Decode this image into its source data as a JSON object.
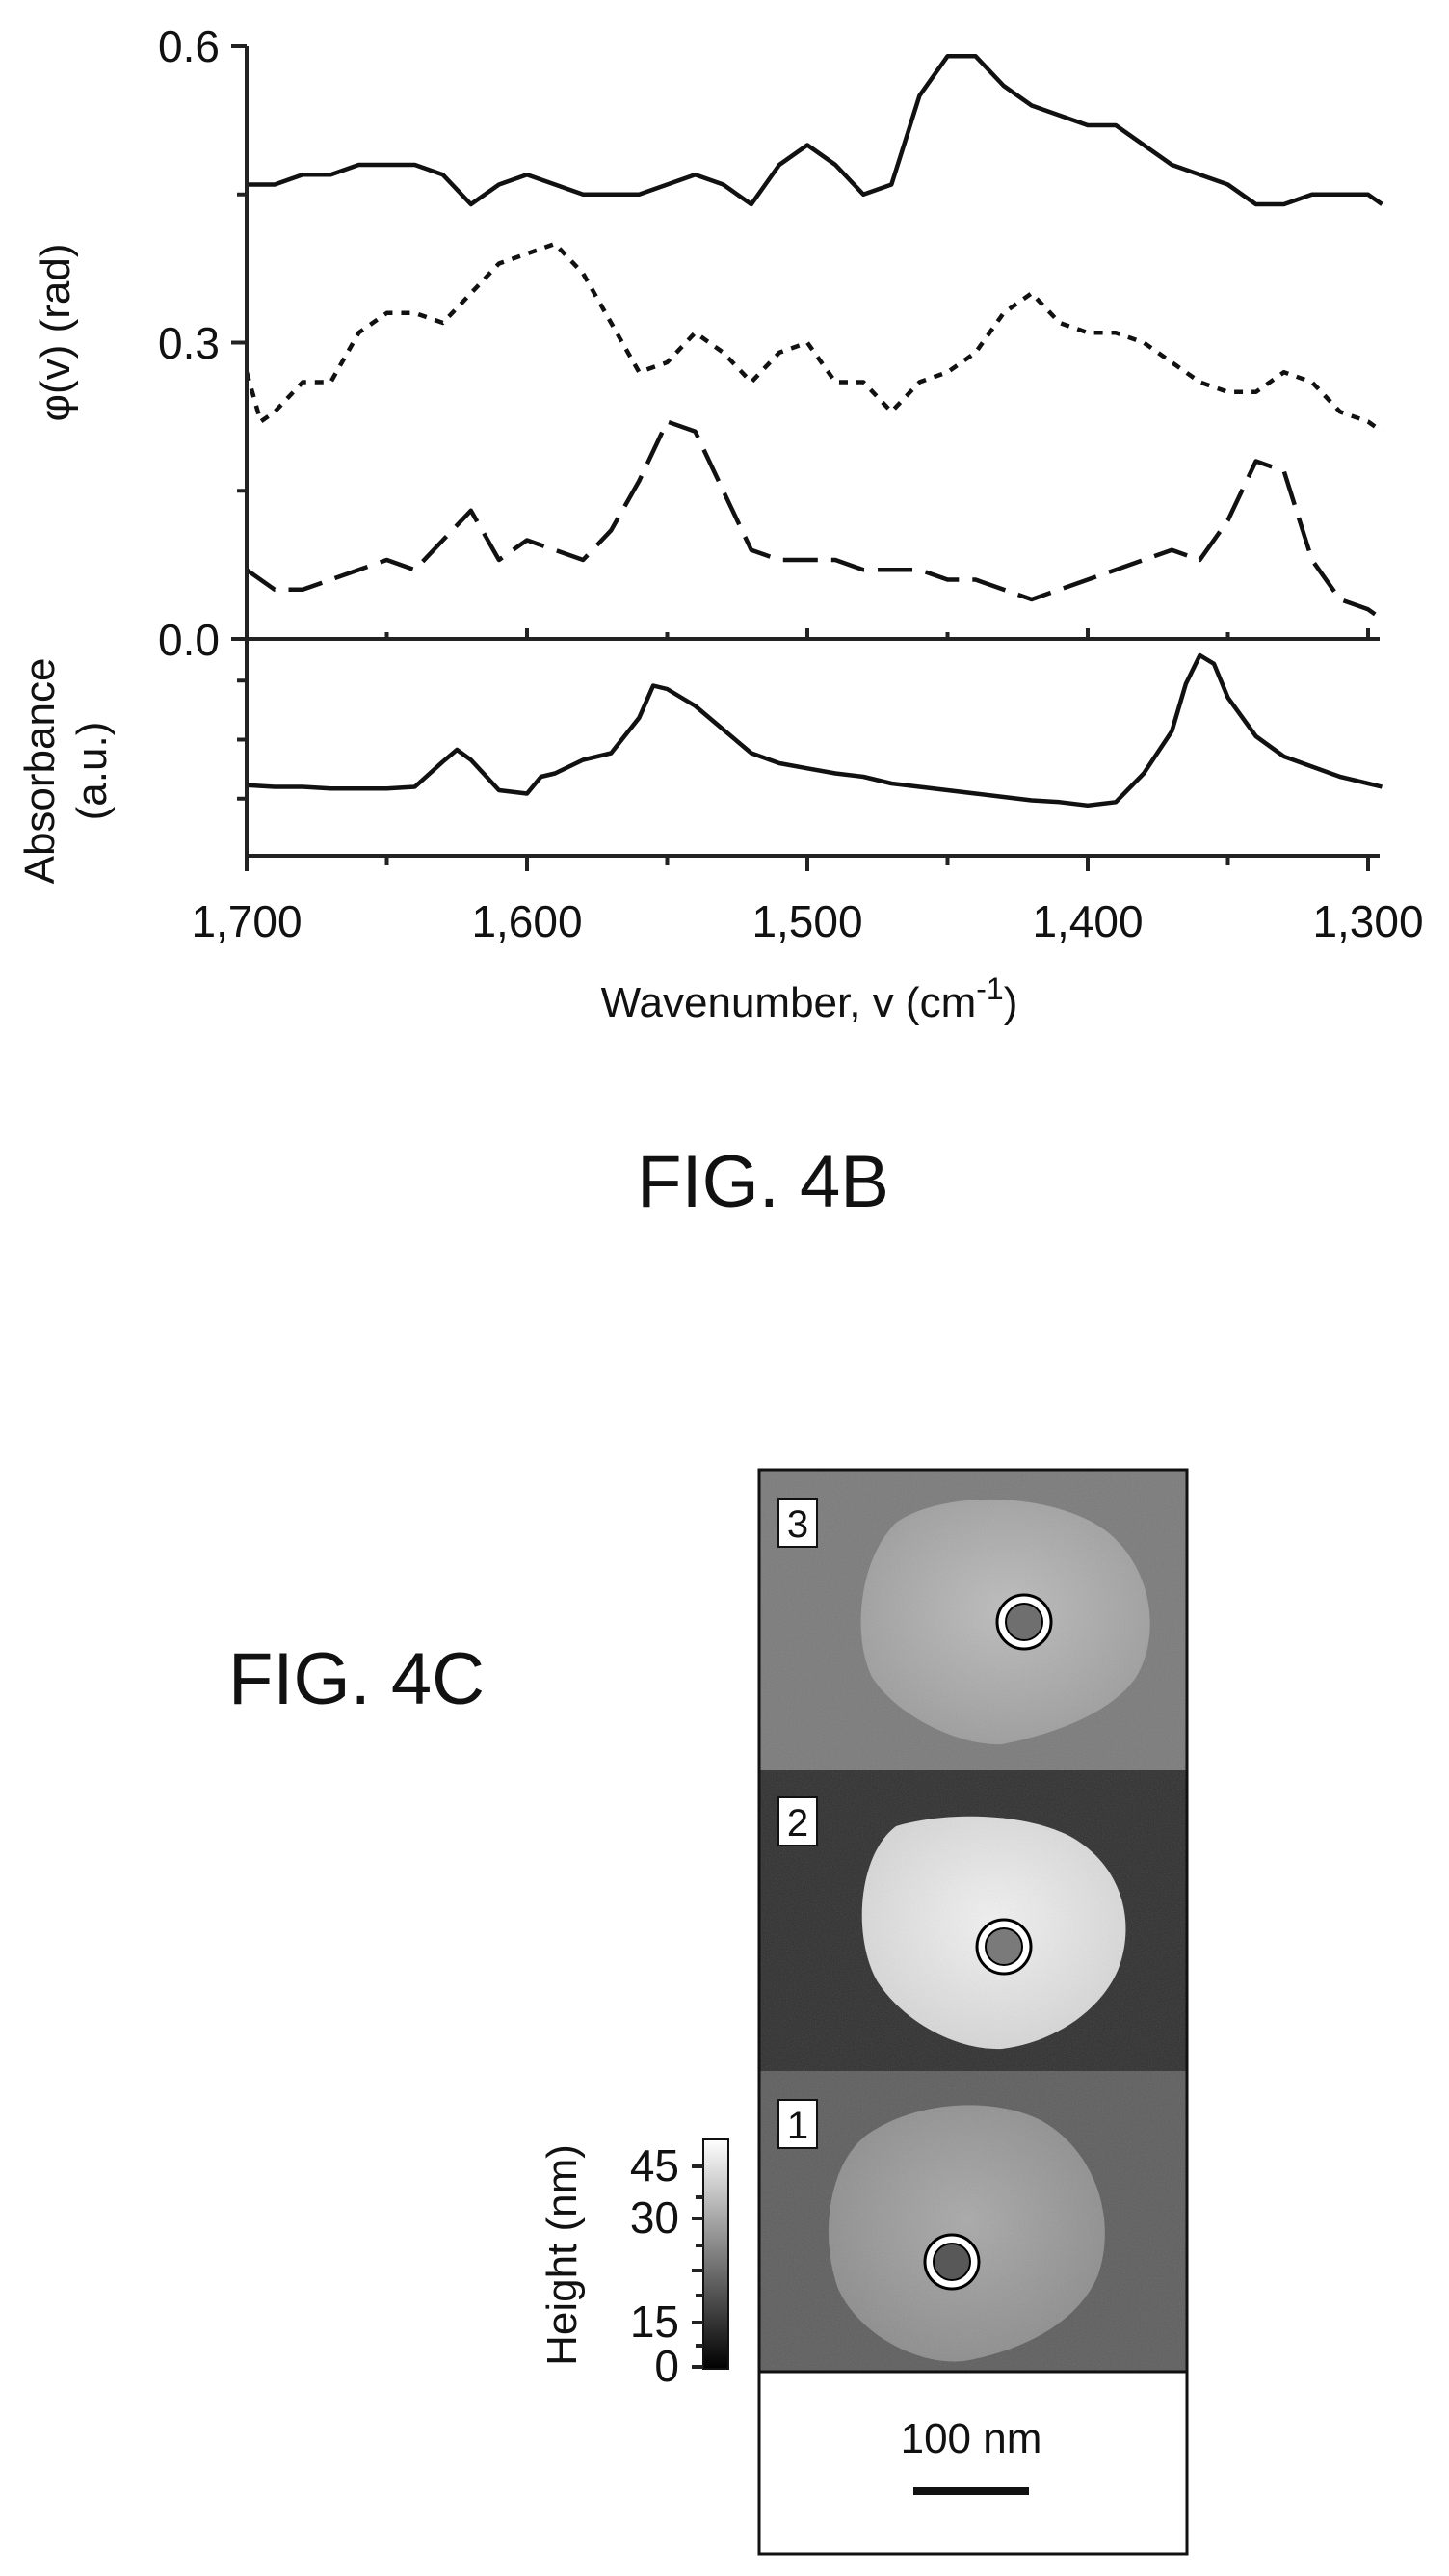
{
  "colors": {
    "ink": "#111111",
    "background": "#ffffff"
  },
  "fig4b": {
    "caption": "FIG. 4B",
    "xlabel": "Wavenumber, v (cm",
    "xlabel_sup": "-1",
    "xlabel_close": ")",
    "ylabel_top": "φ(v) (rad)",
    "ylabel_bottom_line1": "Absorbance",
    "ylabel_bottom_line2": "(a.u.)",
    "xtick_labels": [
      "1,700",
      "1,600",
      "1,500",
      "1,400",
      "1,300"
    ],
    "ytick_labels": [
      "0.6",
      "0.3",
      "0.0"
    ]
  },
  "fig4c": {
    "caption": "FIG. 4C",
    "panel_labels": [
      "3",
      "2",
      "1"
    ],
    "colorbar_title": "Height (nm)",
    "colorbar_ticks": [
      "45",
      "30",
      "15",
      "0"
    ],
    "scalebar_label": "100 nm"
  },
  "chart_data": [
    {
      "type": "line",
      "panel": "top",
      "xlabel": "Wavenumber, v (cm-1)",
      "ylabel": "φ(v) (rad)",
      "xlim": [
        1700,
        1295
      ],
      "ylim": [
        0,
        0.6
      ],
      "x_reversed": true,
      "grid": false,
      "series": [
        {
          "style": "solid",
          "x": [
            1700,
            1690,
            1680,
            1670,
            1660,
            1650,
            1640,
            1630,
            1620,
            1610,
            1600,
            1590,
            1580,
            1570,
            1560,
            1550,
            1540,
            1530,
            1520,
            1510,
            1500,
            1490,
            1480,
            1470,
            1460,
            1450,
            1440,
            1430,
            1420,
            1410,
            1400,
            1390,
            1380,
            1370,
            1360,
            1350,
            1340,
            1330,
            1320,
            1310,
            1300,
            1295
          ],
          "y": [
            0.46,
            0.46,
            0.47,
            0.47,
            0.48,
            0.48,
            0.48,
            0.47,
            0.44,
            0.46,
            0.47,
            0.46,
            0.45,
            0.45,
            0.45,
            0.46,
            0.47,
            0.46,
            0.44,
            0.48,
            0.5,
            0.48,
            0.45,
            0.46,
            0.55,
            0.59,
            0.59,
            0.56,
            0.54,
            0.53,
            0.52,
            0.52,
            0.5,
            0.48,
            0.47,
            0.46,
            0.44,
            0.44,
            0.45,
            0.45,
            0.45,
            0.44
          ]
        },
        {
          "style": "dotted",
          "x": [
            1700,
            1695,
            1690,
            1680,
            1670,
            1660,
            1650,
            1640,
            1630,
            1620,
            1610,
            1600,
            1590,
            1580,
            1570,
            1560,
            1550,
            1540,
            1530,
            1520,
            1510,
            1500,
            1490,
            1480,
            1470,
            1460,
            1450,
            1440,
            1430,
            1420,
            1410,
            1400,
            1390,
            1380,
            1370,
            1360,
            1350,
            1340,
            1330,
            1320,
            1310,
            1300,
            1295
          ],
          "y": [
            0.27,
            0.22,
            0.23,
            0.26,
            0.26,
            0.31,
            0.33,
            0.33,
            0.32,
            0.35,
            0.38,
            0.39,
            0.4,
            0.37,
            0.32,
            0.27,
            0.28,
            0.31,
            0.29,
            0.26,
            0.29,
            0.3,
            0.26,
            0.26,
            0.23,
            0.26,
            0.27,
            0.29,
            0.33,
            0.35,
            0.32,
            0.31,
            0.31,
            0.3,
            0.28,
            0.26,
            0.25,
            0.25,
            0.27,
            0.26,
            0.23,
            0.22,
            0.21
          ]
        },
        {
          "style": "dashed",
          "x": [
            1700,
            1690,
            1680,
            1670,
            1660,
            1650,
            1640,
            1630,
            1620,
            1610,
            1600,
            1590,
            1580,
            1570,
            1560,
            1550,
            1540,
            1530,
            1520,
            1510,
            1500,
            1490,
            1480,
            1470,
            1460,
            1450,
            1440,
            1430,
            1420,
            1410,
            1400,
            1390,
            1380,
            1370,
            1360,
            1350,
            1340,
            1330,
            1320,
            1310,
            1300,
            1295
          ],
          "y": [
            0.07,
            0.05,
            0.05,
            0.06,
            0.07,
            0.08,
            0.07,
            0.1,
            0.13,
            0.08,
            0.1,
            0.09,
            0.08,
            0.11,
            0.16,
            0.22,
            0.21,
            0.15,
            0.09,
            0.08,
            0.08,
            0.08,
            0.07,
            0.07,
            0.07,
            0.06,
            0.06,
            0.05,
            0.04,
            0.05,
            0.06,
            0.07,
            0.08,
            0.09,
            0.08,
            0.12,
            0.18,
            0.17,
            0.08,
            0.04,
            0.03,
            0.02
          ]
        }
      ]
    },
    {
      "type": "line",
      "panel": "bottom",
      "xlabel": "Wavenumber, v (cm-1)",
      "ylabel": "Absorbance (a.u.)",
      "xlim": [
        1700,
        1295
      ],
      "ylim": [
        0,
        1
      ],
      "x_reversed": true,
      "grid": false,
      "series": [
        {
          "style": "solid",
          "x": [
            1700,
            1690,
            1680,
            1670,
            1660,
            1650,
            1640,
            1630,
            1625,
            1620,
            1610,
            1600,
            1595,
            1590,
            1580,
            1570,
            1560,
            1555,
            1550,
            1540,
            1530,
            1520,
            1510,
            1500,
            1490,
            1480,
            1470,
            1460,
            1450,
            1440,
            1430,
            1420,
            1410,
            1400,
            1390,
            1380,
            1370,
            1365,
            1360,
            1355,
            1350,
            1340,
            1330,
            1320,
            1310,
            1300,
            1295
          ],
          "y": [
            0.23,
            0.22,
            0.22,
            0.21,
            0.21,
            0.21,
            0.22,
            0.37,
            0.44,
            0.38,
            0.2,
            0.18,
            0.28,
            0.3,
            0.38,
            0.42,
            0.63,
            0.82,
            0.8,
            0.7,
            0.56,
            0.42,
            0.36,
            0.33,
            0.3,
            0.28,
            0.24,
            0.22,
            0.2,
            0.18,
            0.16,
            0.14,
            0.13,
            0.11,
            0.13,
            0.3,
            0.55,
            0.83,
            1.0,
            0.95,
            0.75,
            0.52,
            0.4,
            0.34,
            0.28,
            0.24,
            0.22
          ]
        }
      ]
    }
  ]
}
